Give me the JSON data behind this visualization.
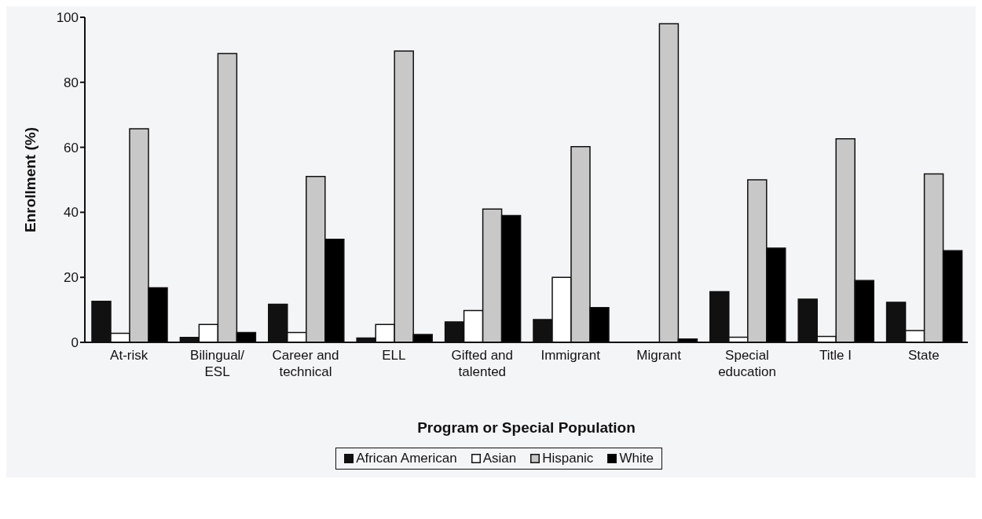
{
  "chart_data": {
    "type": "bar",
    "xlabel": "Program or Special Population",
    "ylabel": "Enrollment (%)",
    "categories": [
      "At-risk",
      "Bilingual/ESL",
      "Career and technical",
      "ELL",
      "Gifted and talented",
      "Immigrant",
      "Migrant",
      "Special education",
      "Title I",
      "State"
    ],
    "series": [
      {
        "name": "African American",
        "color": "#111111",
        "values": [
          12.6,
          1.5,
          11.7,
          1.3,
          6.3,
          7,
          null,
          15.6,
          13.3,
          12.3
        ]
      },
      {
        "name": "Asian",
        "color": "#ffffff",
        "values": [
          2.8,
          5.5,
          3,
          5.5,
          9.8,
          20,
          null,
          1.6,
          1.8,
          3.6
        ]
      },
      {
        "name": "Hispanic",
        "color": "#c8c8c8",
        "values": [
          65.7,
          88.8,
          51,
          89.6,
          41,
          60.2,
          98,
          50,
          62.6,
          51.8
        ]
      },
      {
        "name": "White",
        "color": "#000000",
        "values": [
          16.8,
          3,
          31.7,
          2.4,
          39,
          10.7,
          1,
          29,
          19,
          28.2
        ]
      }
    ],
    "ylim": [
      0,
      100
    ],
    "yticks": [
      0,
      20,
      40,
      60,
      80,
      100
    ],
    "grid": false,
    "legend": "bottom"
  }
}
